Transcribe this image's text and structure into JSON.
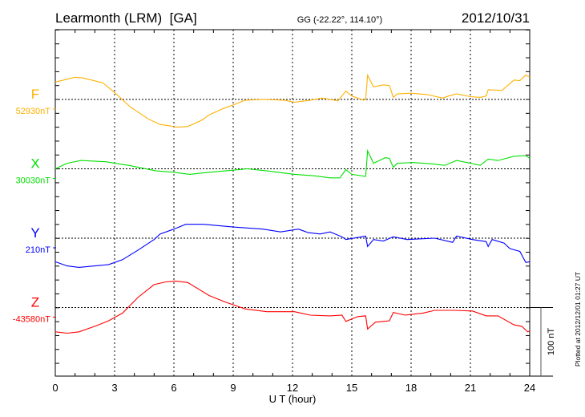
{
  "chart_data": {
    "type": "line",
    "title": "Learmonth (LRM)  [GA]",
    "subtitle": "GG (-22.22°, 114.10°)",
    "date": "2012/10/31",
    "xlabel": "U T (hour)",
    "xlim": [
      0,
      24
    ],
    "xticks": [
      "0",
      "3",
      "6",
      "9",
      "12",
      "15",
      "18",
      "21",
      "24"
    ],
    "grid": true,
    "scale_bar": "100 nT",
    "footer": "Plotted at 2012/12/01 01:27 UT",
    "series": [
      {
        "name": "F",
        "baseline": "52930nT",
        "color": "#ffb000",
        "x": [
          0,
          1.0,
          1.4,
          2.4,
          3.0,
          3.8,
          4.7,
          5.3,
          5.8,
          6.1,
          6.7,
          7.4,
          7.8,
          8.5,
          9.0,
          9.6,
          10.5,
          11.6,
          12.1,
          12.9,
          13.5,
          14.3,
          14.7,
          15.0,
          15.6,
          15.7,
          15.8,
          16.1,
          16.6,
          16.9,
          17.1,
          17.3,
          18.0,
          18.8,
          19.6,
          19.9,
          20.3,
          21.0,
          21.5,
          21.8,
          21.9,
          22.6,
          23.2,
          23.5,
          23.8,
          24
        ],
        "y": [
          25,
          32,
          31,
          24,
          10,
          -11,
          -28,
          -36,
          -38,
          -40,
          -39,
          -30,
          -22,
          -13,
          -8,
          -1,
          0,
          -1,
          -4,
          -1,
          2,
          -2,
          12,
          5,
          -1,
          0,
          35,
          18,
          21,
          20,
          3,
          8,
          9,
          7,
          2,
          5,
          8,
          4,
          3,
          5,
          14,
          13,
          28,
          27,
          35,
          32
        ]
      },
      {
        "name": "X",
        "baseline": "30030nT",
        "color": "#00e000",
        "x": [
          0,
          0.6,
          1.3,
          2.6,
          3.0,
          3.7,
          4.4,
          5.1,
          6.0,
          6.8,
          7.8,
          9.0,
          9.7,
          10.7,
          12.1,
          13.1,
          13.9,
          14.4,
          14.7,
          15.0,
          15.7,
          15.8,
          16.1,
          16.4,
          16.7,
          16.9,
          17.1,
          17.3,
          18.1,
          19.1,
          19.7,
          20.3,
          21.0,
          21.5,
          21.9,
          22.4,
          23.2,
          23.8,
          24
        ],
        "y": [
          0,
          8,
          12,
          10,
          8,
          5,
          1,
          -3,
          -5,
          -8,
          -5,
          -2,
          0,
          -3,
          -8,
          -10,
          -13,
          -13,
          -1,
          -8,
          -11,
          26,
          8,
          12,
          16,
          15,
          2,
          8,
          9,
          7,
          5,
          12,
          8,
          5,
          14,
          12,
          18,
          19,
          15
        ]
      },
      {
        "name": "Y",
        "baseline": "210nT",
        "color": "#0000ff",
        "x": [
          0,
          0.6,
          1.2,
          2.0,
          2.7,
          3.4,
          4.2,
          5.0,
          5.3,
          6.0,
          6.6,
          7.5,
          9.0,
          10.5,
          11.4,
          12.3,
          12.8,
          13.4,
          13.9,
          14.5,
          14.7,
          15.7,
          15.8,
          16.1,
          16.6,
          17.1,
          17.8,
          19.2,
          20.1,
          20.3,
          21.1,
          21.8,
          21.9,
          22.1,
          22.7,
          23.0,
          23.5,
          23.8,
          24
        ],
        "y": [
          -34,
          -40,
          -42,
          -40,
          -38,
          -31,
          -17,
          -2,
          6,
          13,
          20,
          20,
          16,
          13,
          9,
          13,
          8,
          6,
          9,
          2,
          -2,
          3,
          -12,
          -2,
          -4,
          2,
          -2,
          0,
          -6,
          3,
          -2,
          -5,
          -12,
          -2,
          -7,
          -15,
          -19,
          -35,
          -34
        ]
      },
      {
        "name": "Z",
        "baseline": "-43580nT",
        "color": "#ff0000",
        "x": [
          0,
          0.6,
          1.2,
          2.0,
          2.7,
          3.4,
          4.2,
          5.0,
          5.6,
          6.1,
          6.7,
          7.8,
          8.6,
          9.6,
          10.7,
          12.1,
          12.9,
          13.9,
          14.5,
          14.7,
          15.3,
          15.7,
          15.8,
          16.2,
          16.6,
          16.9,
          17.1,
          17.7,
          18.6,
          19.2,
          20.2,
          21.1,
          21.8,
          22.4,
          23.2,
          23.6,
          23.9,
          24
        ],
        "y": [
          -35,
          -37,
          -35,
          -27,
          -19,
          -8,
          15,
          33,
          37,
          38,
          36,
          17,
          8,
          -2,
          -6,
          -6,
          -11,
          -12,
          -11,
          -20,
          -13,
          -12,
          -31,
          -21,
          -20,
          -19,
          -7,
          -11,
          -8,
          -4,
          -4,
          -5,
          -12,
          -12,
          -25,
          -27,
          -35,
          -34
        ]
      }
    ]
  }
}
